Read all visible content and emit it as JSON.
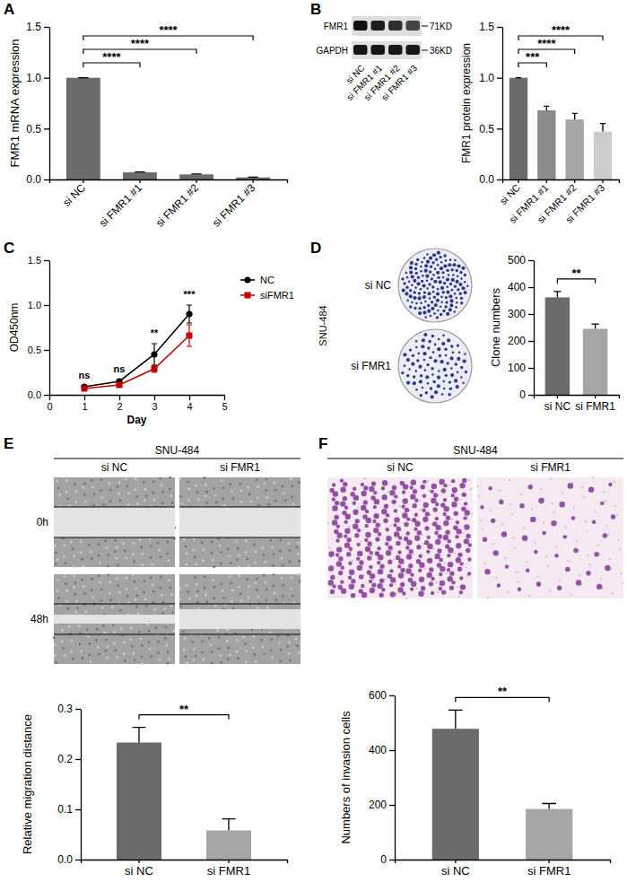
{
  "chart_data": [
    {
      "panel": "A",
      "type": "bar",
      "y_label": "FMR1 mRNA expression",
      "categories": [
        "si NC",
        "si FMR1 #1",
        "si FMR1 #2",
        "si FMR1 #3"
      ],
      "values": [
        1.0,
        0.07,
        0.05,
        0.02
      ],
      "errors": [
        0,
        0.004,
        0.004,
        0.003
      ],
      "color": "#6b6b6b",
      "ylim": [
        0,
        1.5
      ],
      "yticks": [
        {
          "value": 0,
          "label": "0.0"
        },
        {
          "value": 0.5,
          "label": "0.5"
        },
        {
          "value": 1,
          "label": "1.0"
        },
        {
          "value": 1.5,
          "label": "1.5"
        }
      ],
      "comparisons": [
        {
          "groups": [
            "si NC",
            "si FMR1 #1"
          ],
          "label": "****"
        },
        {
          "groups": [
            "si NC",
            "si FMR1 #2"
          ],
          "label": "****"
        },
        {
          "groups": [
            "si NC",
            "si FMR1 #3"
          ],
          "label": "****"
        }
      ]
    },
    {
      "panel": "B",
      "type": "bar",
      "y_label": "FMR1 protein expression",
      "categories": [
        "si NC",
        "si FMR1 #1",
        "si FMR1 #2",
        "si FMR1 #3"
      ],
      "values": [
        1.0,
        0.68,
        0.59,
        0.47
      ],
      "errors": [
        0,
        0.04,
        0.06,
        0.08
      ],
      "colors": [
        "#6b6b6b",
        "#8c8c8c",
        "#a6a6a6",
        "#cccccc"
      ],
      "ylim": [
        0,
        1.5
      ],
      "yticks": [
        {
          "value": 0,
          "label": "0.0"
        },
        {
          "value": 0.5,
          "label": "0.5"
        },
        {
          "value": 1,
          "label": "1.0"
        },
        {
          "value": 1.5,
          "label": "1.5"
        }
      ],
      "comparisons": [
        {
          "groups": [
            "si NC",
            "si FMR1 #1"
          ],
          "label": "***"
        },
        {
          "groups": [
            "si NC",
            "si FMR1 #2"
          ],
          "label": "****"
        },
        {
          "groups": [
            "si NC",
            "si FMR1 #3"
          ],
          "label": "****"
        }
      ],
      "image_labels": {
        "bands": [
          "FMR1",
          "GAPDH"
        ],
        "sizes": [
          "71KD",
          "36KD"
        ]
      }
    },
    {
      "panel": "C",
      "type": "line",
      "x_label": "Day",
      "y_label": "OD450nm",
      "x": [
        1,
        2,
        3,
        4
      ],
      "series": [
        {
          "name": "NC",
          "color": "#000000",
          "marker": "circle",
          "values": [
            0.09,
            0.15,
            0.45,
            0.9
          ],
          "errors": [
            0.01,
            0.02,
            0.12,
            0.1
          ]
        },
        {
          "name": "siFMR1",
          "color": "#c00000",
          "marker": "square",
          "values": [
            0.07,
            0.11,
            0.29,
            0.66
          ],
          "errors": [
            0.01,
            0.02,
            0.04,
            0.12
          ]
        }
      ],
      "xlim": [
        0,
        5
      ],
      "xticks": [
        0,
        1,
        2,
        3,
        4,
        5
      ],
      "ylim": [
        0,
        1.5
      ],
      "yticks": [
        {
          "value": 0,
          "label": "0.0"
        },
        {
          "value": 0.5,
          "label": "0.5"
        },
        {
          "value": 1,
          "label": "1.0"
        },
        {
          "value": 1.5,
          "label": "1.5"
        }
      ],
      "annotations": [
        "ns",
        "ns",
        "**",
        "***"
      ],
      "legend": "right"
    },
    {
      "panel": "D",
      "type": "bar",
      "y_label": "Clone numbers",
      "categories": [
        "si NC",
        "si FMR1"
      ],
      "values": [
        362,
        245
      ],
      "errors": [
        22,
        18
      ],
      "colors": [
        "#6b6b6b",
        "#a6a6a6"
      ],
      "ylim": [
        0,
        500
      ],
      "yticks": [
        0,
        100,
        200,
        300,
        400,
        500
      ],
      "comparisons": [
        {
          "groups": [
            "si NC",
            "si FMR1"
          ],
          "label": "**"
        }
      ],
      "image_labels": {
        "cell_line": "SNU-484"
      }
    },
    {
      "panel": "E",
      "type": "bar",
      "y_label": "Relative migration distance",
      "categories": [
        "si NC",
        "si FMR1"
      ],
      "values": [
        0.233,
        0.058
      ],
      "errors": [
        0.03,
        0.023
      ],
      "colors": [
        "#6b6b6b",
        "#a6a6a6"
      ],
      "ylim": [
        0,
        0.3
      ],
      "yticks": [
        {
          "value": 0,
          "label": "0.0"
        },
        {
          "value": 0.1,
          "label": "0.1"
        },
        {
          "value": 0.2,
          "label": "0.2"
        },
        {
          "value": 0.3,
          "label": "0.3"
        }
      ],
      "comparisons": [
        {
          "groups": [
            "si NC",
            "si FMR1"
          ],
          "label": "**"
        }
      ],
      "image_labels": {
        "cell_line": "SNU-484",
        "times": [
          "0h",
          "48h"
        ]
      }
    },
    {
      "panel": "F",
      "type": "bar",
      "y_label": "Numbers of invasion cells",
      "categories": [
        "si NC",
        "si FMR1"
      ],
      "values": [
        478,
        185
      ],
      "errors": [
        68,
        20
      ],
      "colors": [
        "#6b6b6b",
        "#a6a6a6"
      ],
      "ylim": [
        0,
        600
      ],
      "yticks": [
        0,
        200,
        400,
        600
      ],
      "comparisons": [
        {
          "groups": [
            "si NC",
            "si FMR1"
          ],
          "label": "**"
        }
      ],
      "image_labels": {
        "cell_line": "SNU-484"
      }
    }
  ]
}
